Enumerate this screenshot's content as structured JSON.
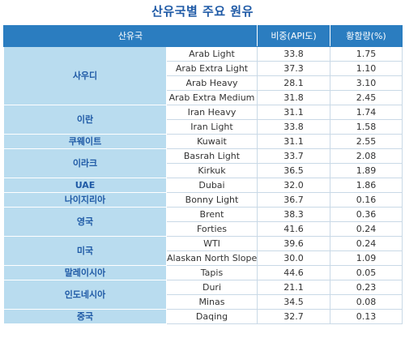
{
  "title": "산유국별 주요 원유",
  "headers": {
    "country": "산유국",
    "api": "비중(API도)",
    "sulfur": "황함량(%)"
  },
  "rows": [
    {
      "country": "사우디",
      "rowspan": 4,
      "crude": "Arab Light",
      "api": "33.8",
      "sulfur": "1.75"
    },
    {
      "country": "",
      "rowspan": 0,
      "crude": "Arab Extra Light",
      "api": "37.3",
      "sulfur": "1.10"
    },
    {
      "country": "",
      "rowspan": 0,
      "crude": "Arab Heavy",
      "api": "28.1",
      "sulfur": "3.10"
    },
    {
      "country": "",
      "rowspan": 0,
      "crude": "Arab Extra Medium",
      "api": "31.8",
      "sulfur": "2.45"
    },
    {
      "country": "이란",
      "rowspan": 2,
      "crude": "Iran Heavy",
      "api": "31.1",
      "sulfur": "1.74"
    },
    {
      "country": "",
      "rowspan": 0,
      "crude": "Iran Light",
      "api": "33.8",
      "sulfur": "1.58"
    },
    {
      "country": "쿠웨이트",
      "rowspan": 1,
      "crude": "Kuwait",
      "api": "31.1",
      "sulfur": "2.55"
    },
    {
      "country": "이라크",
      "rowspan": 2,
      "crude": "Basrah Light",
      "api": "33.7",
      "sulfur": "2.08"
    },
    {
      "country": "",
      "rowspan": 0,
      "crude": "Kirkuk",
      "api": "36.5",
      "sulfur": "1.89"
    },
    {
      "country": "UAE",
      "rowspan": 1,
      "crude": "Dubai",
      "api": "32.0",
      "sulfur": "1.86"
    },
    {
      "country": "나이지리아",
      "rowspan": 1,
      "crude": "Bonny Light",
      "api": "36.7",
      "sulfur": "0.16"
    },
    {
      "country": "영국",
      "rowspan": 2,
      "crude": "Brent",
      "api": "38.3",
      "sulfur": "0.36"
    },
    {
      "country": "",
      "rowspan": 0,
      "crude": "Forties",
      "api": "41.6",
      "sulfur": "0.24"
    },
    {
      "country": "미국",
      "rowspan": 2,
      "crude": "WTI",
      "api": "39.6",
      "sulfur": "0.24"
    },
    {
      "country": "",
      "rowspan": 0,
      "crude": "Alaskan North Slope",
      "api": "30.0",
      "sulfur": "1.09"
    },
    {
      "country": "말레이시아",
      "rowspan": 1,
      "crude": "Tapis",
      "api": "44.6",
      "sulfur": "0.05"
    },
    {
      "country": "인도네시아",
      "rowspan": 2,
      "crude": "Duri",
      "api": "21.1",
      "sulfur": "0.23"
    },
    {
      "country": "",
      "rowspan": 0,
      "crude": "Minas",
      "api": "34.5",
      "sulfur": "0.08"
    },
    {
      "country": "중국",
      "rowspan": 1,
      "crude": "Daqing",
      "api": "32.7",
      "sulfur": "0.13"
    }
  ]
}
